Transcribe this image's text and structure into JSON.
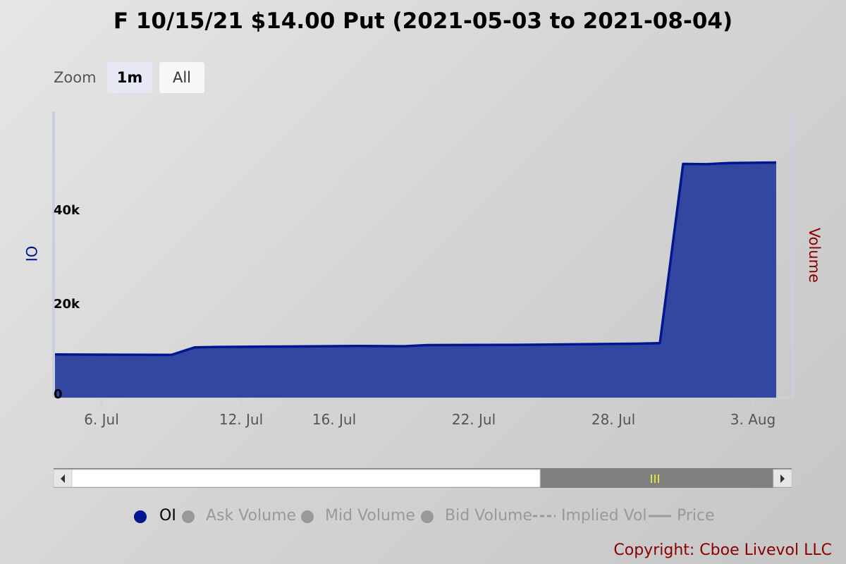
{
  "title": "F 10/15/21 $14.00 Put (2021-05-03 to 2021-08-04)",
  "zoom": {
    "label": "Zoom",
    "buttons": [
      "1m",
      "All"
    ],
    "selected": "1m"
  },
  "legend": [
    {
      "label": "OI",
      "active": true,
      "color": "#00178f",
      "symbol": "dot"
    },
    {
      "label": "Ask Volume",
      "active": false,
      "color": "#999999",
      "symbol": "dot"
    },
    {
      "label": "Mid Volume",
      "active": false,
      "color": "#999999",
      "symbol": "dot"
    },
    {
      "label": "Bid Volume",
      "active": false,
      "color": "#999999",
      "symbol": "dot"
    },
    {
      "label": "Implied Vol",
      "active": false,
      "color": "#999999",
      "symbol": "dash"
    },
    {
      "label": "Price",
      "active": false,
      "color": "#999999",
      "symbol": "line"
    }
  ],
  "copyright": "Copyright: Cboe Livevol LLC",
  "chart_data": {
    "type": "area",
    "title": "F 10/15/21 $14.00 Put (2021-05-03 to 2021-08-04)",
    "xlabel": "",
    "ylabel": "OI",
    "y2label": "Volume",
    "ylim": [
      0,
      61000
    ],
    "yticks": [
      0,
      20000,
      40000
    ],
    "ytick_labels": [
      "0",
      "20k",
      "40k"
    ],
    "xticks": [
      "2021-07-06",
      "2021-07-12",
      "2021-07-16",
      "2021-07-22",
      "2021-07-28",
      "2021-08-03"
    ],
    "xtick_labels": [
      "6. Jul",
      "12. Jul",
      "16. Jul",
      "22. Jul",
      "28. Jul",
      "3. Aug"
    ],
    "xlim": [
      "2021-07-04",
      "2021-08-05"
    ],
    "grid": false,
    "legend_position": "bottom",
    "colors": {
      "OI": "#00178f",
      "OI_fill": "#3347a0",
      "Volume_axis": "#8b0000"
    },
    "series": [
      {
        "name": "OI",
        "points": [
          [
            "2021-07-04",
            9200
          ],
          [
            "2021-07-09",
            9100
          ],
          [
            "2021-07-10",
            10700
          ],
          [
            "2021-07-11",
            10800
          ],
          [
            "2021-07-14",
            10900
          ],
          [
            "2021-07-17",
            11000
          ],
          [
            "2021-07-19",
            10950
          ],
          [
            "2021-07-20",
            11200
          ],
          [
            "2021-07-24",
            11250
          ],
          [
            "2021-07-29",
            11500
          ],
          [
            "2021-07-30",
            11600
          ],
          [
            "2021-07-31",
            49800
          ],
          [
            "2021-08-01",
            49750
          ],
          [
            "2021-08-02",
            50000
          ],
          [
            "2021-08-04",
            50100
          ]
        ]
      }
    ]
  }
}
